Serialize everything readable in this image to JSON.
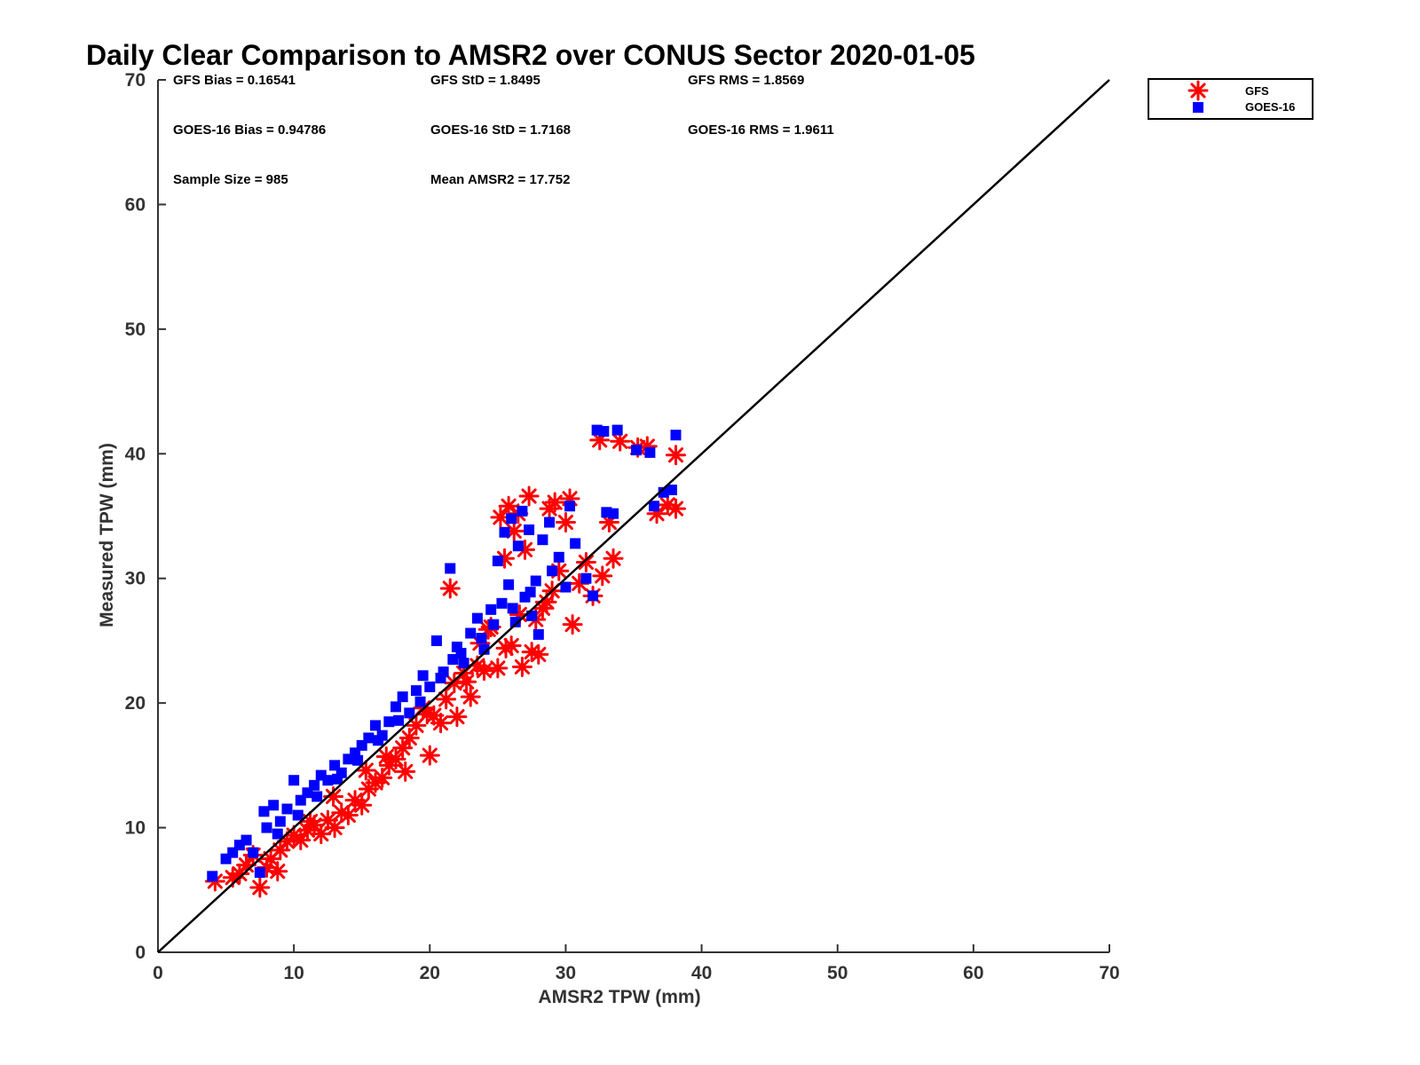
{
  "chart_data": {
    "type": "scatter",
    "title": "Daily Clear Comparison to AMSR2 over CONUS Sector 2020-01-05",
    "xlabel": "AMSR2 TPW (mm)",
    "ylabel": "Measured TPW (mm)",
    "xlim": [
      0,
      70
    ],
    "ylim": [
      0,
      70
    ],
    "xticks": [
      "0",
      "10",
      "20",
      "30",
      "40",
      "50",
      "60",
      "70"
    ],
    "yticks": [
      "0",
      "10",
      "20",
      "30",
      "40",
      "50",
      "60",
      "70"
    ],
    "grid": false,
    "legend_position": "top-right",
    "reference_line": {
      "x": [
        0,
        70
      ],
      "y": [
        0,
        70
      ],
      "color": "#000000"
    },
    "stats": [
      "GFS Bias = 0.16541",
      "GFS StD = 1.8495",
      "GFS RMS = 1.8569",
      "GOES-16 Bias = 0.94786",
      "GOES-16 StD = 1.7168",
      "GOES-16 RMS = 1.9611",
      "Sample Size = 985",
      "Mean AMSR2 = 17.752"
    ],
    "series": [
      {
        "name": "GFS",
        "marker": "asterisk",
        "color": "#ff0000",
        "points": [
          [
            4.2,
            5.7
          ],
          [
            5.5,
            6.0
          ],
          [
            6.0,
            6.3
          ],
          [
            6.5,
            7.0
          ],
          [
            7.0,
            7.8
          ],
          [
            7.5,
            5.2
          ],
          [
            8.0,
            6.8
          ],
          [
            8.3,
            7.5
          ],
          [
            8.8,
            6.5
          ],
          [
            9.0,
            8.2
          ],
          [
            9.5,
            8.9
          ],
          [
            10.0,
            9.4
          ],
          [
            10.5,
            9.0
          ],
          [
            11.0,
            9.8
          ],
          [
            11.5,
            10.2
          ],
          [
            12.0,
            9.5
          ],
          [
            12.5,
            10.6
          ],
          [
            13.0,
            10.0
          ],
          [
            13.5,
            11.2
          ],
          [
            14.0,
            11.0
          ],
          [
            14.5,
            12.2
          ],
          [
            15.0,
            11.8
          ],
          [
            15.5,
            13.1
          ],
          [
            16.0,
            13.6
          ],
          [
            16.5,
            14.0
          ],
          [
            17.0,
            15.0
          ],
          [
            17.5,
            15.5
          ],
          [
            18.0,
            16.4
          ],
          [
            18.2,
            14.5
          ],
          [
            18.5,
            17.2
          ],
          [
            19.0,
            18.2
          ],
          [
            19.5,
            19.6
          ],
          [
            20.0,
            15.8
          ],
          [
            20.3,
            19.0
          ],
          [
            20.8,
            18.4
          ],
          [
            21.2,
            20.3
          ],
          [
            21.5,
            29.2
          ],
          [
            21.8,
            21.6
          ],
          [
            22.0,
            18.9
          ],
          [
            22.5,
            22.4
          ],
          [
            23.0,
            20.5
          ],
          [
            23.5,
            23.0
          ],
          [
            24.0,
            22.6
          ],
          [
            24.5,
            26.1
          ],
          [
            25.0,
            22.8
          ],
          [
            25.2,
            34.9
          ],
          [
            25.5,
            31.6
          ],
          [
            25.8,
            35.8
          ],
          [
            26.0,
            24.6
          ],
          [
            26.2,
            33.8
          ],
          [
            26.5,
            35.2
          ],
          [
            26.8,
            22.9
          ],
          [
            27.0,
            32.3
          ],
          [
            27.3,
            36.6
          ],
          [
            27.5,
            24.1
          ],
          [
            28.0,
            23.9
          ],
          [
            28.3,
            27.6
          ],
          [
            28.8,
            35.6
          ],
          [
            29.0,
            29.0
          ],
          [
            29.2,
            36.1
          ],
          [
            29.5,
            30.6
          ],
          [
            30.0,
            34.5
          ],
          [
            30.3,
            36.4
          ],
          [
            30.5,
            26.3
          ],
          [
            31.0,
            29.6
          ],
          [
            31.5,
            31.3
          ],
          [
            32.0,
            28.6
          ],
          [
            32.5,
            41.1
          ],
          [
            32.7,
            30.2
          ],
          [
            33.2,
            34.5
          ],
          [
            33.5,
            31.6
          ],
          [
            34.0,
            41.0
          ],
          [
            35.3,
            40.5
          ],
          [
            36.0,
            40.6
          ],
          [
            36.7,
            35.2
          ],
          [
            37.5,
            35.9
          ],
          [
            38.1,
            35.6
          ],
          [
            38.1,
            39.9
          ],
          [
            23.7,
            24.8
          ],
          [
            24.3,
            25.9
          ],
          [
            26.6,
            27.1
          ],
          [
            27.8,
            26.7
          ],
          [
            28.6,
            28.1
          ],
          [
            25.6,
            24.4
          ],
          [
            22.7,
            21.7
          ],
          [
            19.8,
            19.1
          ],
          [
            16.8,
            15.7
          ],
          [
            15.3,
            14.6
          ],
          [
            12.9,
            12.5
          ],
          [
            11.2,
            10.5
          ]
        ]
      },
      {
        "name": "GOES-16",
        "marker": "square",
        "color": "#0000ff",
        "points": [
          [
            4.0,
            6.1
          ],
          [
            5.0,
            7.5
          ],
          [
            5.5,
            8.0
          ],
          [
            6.0,
            8.6
          ],
          [
            6.5,
            9.0
          ],
          [
            7.0,
            8.0
          ],
          [
            7.5,
            6.4
          ],
          [
            7.8,
            11.3
          ],
          [
            8.0,
            10.0
          ],
          [
            8.5,
            11.8
          ],
          [
            9.0,
            10.5
          ],
          [
            9.5,
            11.5
          ],
          [
            10.0,
            13.8
          ],
          [
            10.5,
            12.2
          ],
          [
            11.0,
            12.8
          ],
          [
            11.5,
            13.4
          ],
          [
            12.0,
            14.2
          ],
          [
            12.5,
            13.8
          ],
          [
            13.0,
            15.0
          ],
          [
            13.5,
            14.4
          ],
          [
            14.0,
            15.5
          ],
          [
            14.5,
            16.0
          ],
          [
            15.0,
            16.6
          ],
          [
            15.5,
            17.2
          ],
          [
            16.0,
            18.2
          ],
          [
            16.5,
            17.4
          ],
          [
            17.0,
            18.5
          ],
          [
            17.5,
            19.7
          ],
          [
            18.0,
            20.5
          ],
          [
            18.5,
            19.2
          ],
          [
            19.0,
            21.0
          ],
          [
            19.5,
            22.2
          ],
          [
            20.0,
            21.3
          ],
          [
            20.5,
            25.0
          ],
          [
            21.0,
            22.5
          ],
          [
            21.5,
            30.8
          ],
          [
            22.0,
            24.5
          ],
          [
            22.5,
            23.2
          ],
          [
            23.0,
            25.6
          ],
          [
            23.5,
            26.8
          ],
          [
            24.0,
            24.3
          ],
          [
            24.5,
            27.5
          ],
          [
            25.0,
            31.4
          ],
          [
            25.3,
            28.0
          ],
          [
            25.5,
            33.7
          ],
          [
            25.8,
            29.5
          ],
          [
            26.0,
            34.8
          ],
          [
            26.3,
            26.5
          ],
          [
            26.5,
            32.6
          ],
          [
            26.8,
            35.4
          ],
          [
            27.0,
            28.5
          ],
          [
            27.3,
            33.9
          ],
          [
            27.5,
            27.0
          ],
          [
            27.8,
            29.8
          ],
          [
            28.0,
            25.5
          ],
          [
            28.3,
            33.1
          ],
          [
            28.8,
            34.5
          ],
          [
            29.0,
            30.6
          ],
          [
            29.5,
            31.7
          ],
          [
            30.0,
            29.3
          ],
          [
            30.3,
            35.8
          ],
          [
            30.7,
            32.8
          ],
          [
            31.5,
            30.0
          ],
          [
            32.0,
            28.6
          ],
          [
            32.3,
            41.9
          ],
          [
            32.8,
            41.8
          ],
          [
            33.0,
            35.3
          ],
          [
            33.5,
            35.2
          ],
          [
            33.8,
            41.9
          ],
          [
            35.2,
            40.3
          ],
          [
            36.2,
            40.1
          ],
          [
            36.5,
            35.8
          ],
          [
            37.2,
            36.9
          ],
          [
            37.8,
            37.1
          ],
          [
            38.1,
            41.5
          ],
          [
            22.3,
            24.0
          ],
          [
            23.8,
            25.2
          ],
          [
            24.7,
            26.3
          ],
          [
            26.1,
            27.6
          ],
          [
            27.4,
            28.9
          ],
          [
            21.7,
            23.5
          ],
          [
            20.8,
            22.0
          ],
          [
            19.3,
            20.1
          ],
          [
            17.7,
            18.6
          ],
          [
            16.2,
            17.0
          ],
          [
            14.7,
            15.4
          ],
          [
            13.2,
            13.9
          ],
          [
            11.7,
            12.5
          ],
          [
            10.3,
            11.0
          ],
          [
            8.8,
            9.5
          ]
        ]
      }
    ]
  }
}
